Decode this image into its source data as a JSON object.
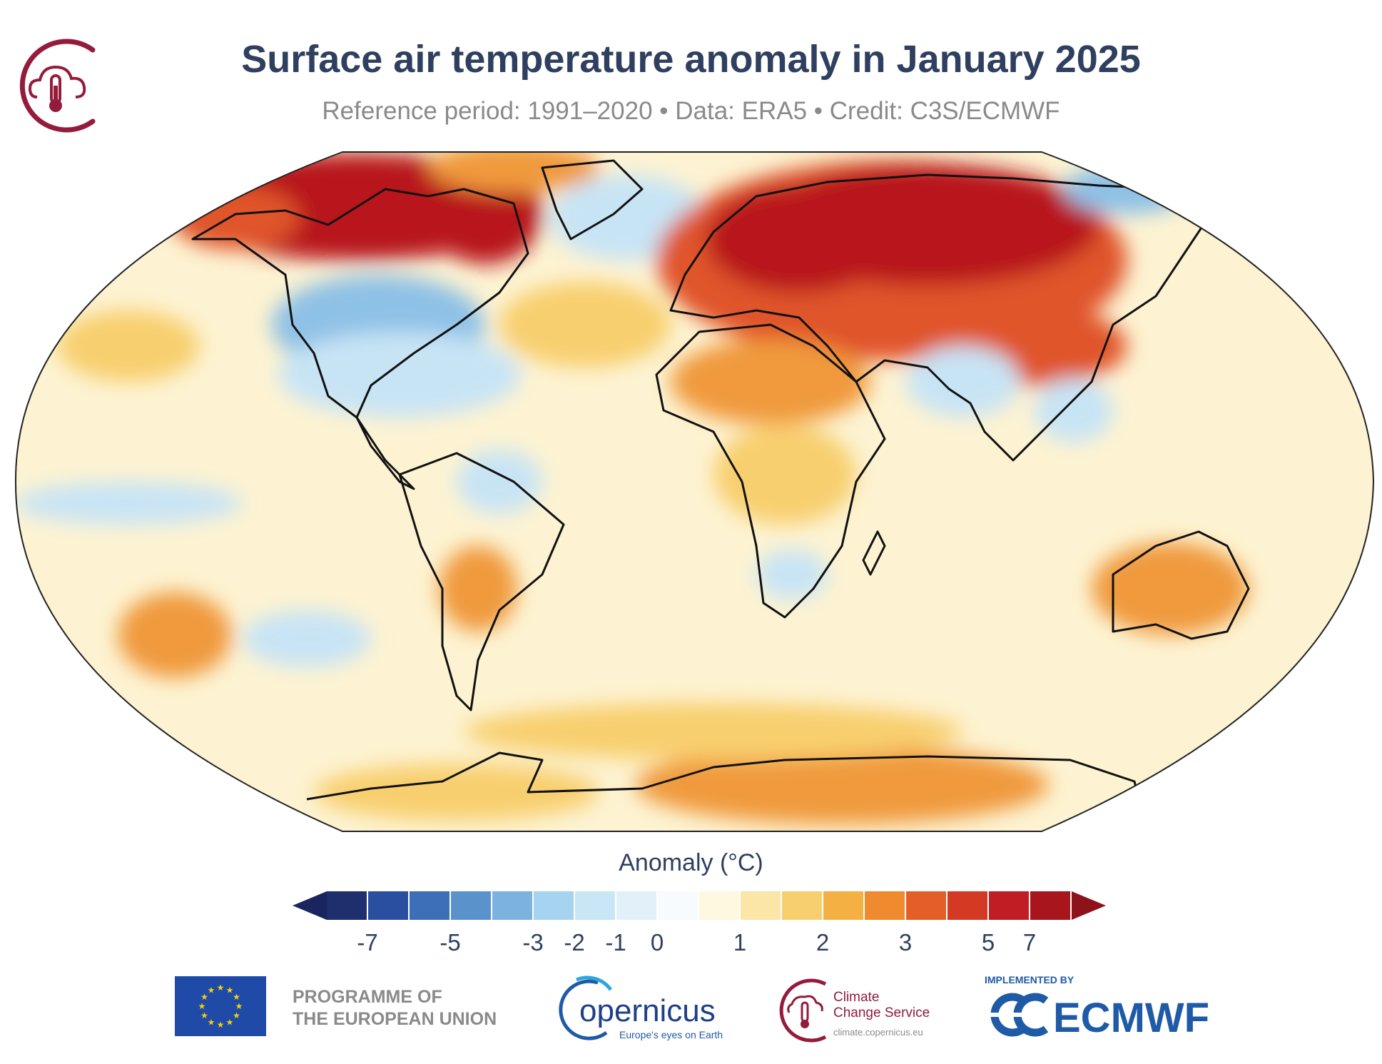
{
  "title": "Surface air temperature anomaly in January 2025",
  "subtitle": "Reference period: 1991–2020 • Data: ERA5 • Credit: C3S/ECMWF",
  "legend": {
    "title": "Anomaly (°C)",
    "ticks": [
      "-7",
      "-5",
      "-3",
      "-2",
      "-1",
      "0",
      "1",
      "2",
      "3",
      "5",
      "7"
    ],
    "colors": [
      "#1f2f6e",
      "#2a4fa0",
      "#3b6fb8",
      "#5a93cc",
      "#7bb2de",
      "#a5d3f0",
      "#c8e6f6",
      "#e2f1f9",
      "#f7fbfd",
      "#fef8e0",
      "#fbe6a8",
      "#f8cf6e",
      "#f5b043",
      "#ef8a2f",
      "#e45f27",
      "#d43a23",
      "#c01e24",
      "#a8151d"
    ],
    "low_arrow_color": "#1a2560",
    "high_arrow_color": "#8e1219"
  },
  "map_colors": {
    "ocean_base": "#fdf3d2",
    "cool": "#c7e4f5",
    "cold": "#8ec1e6",
    "very_cold": "#5a93cc",
    "warm": "#f8cf6e",
    "warmer": "#f09a3c",
    "hot": "#e0542a",
    "very_hot": "#b8171f",
    "coast": "#111111"
  },
  "footer": {
    "eu_text_line1": "PROGRAMME OF",
    "eu_text_line2": "THE EUROPEAN UNION",
    "copernicus_name": "opernicus",
    "copernicus_tagline": "Europe's eyes on Earth",
    "c3s_line1": "Climate",
    "c3s_line2": "Change Service",
    "c3s_url": "climate.copernicus.eu",
    "ecmwf_implemented": "IMPLEMENTED BY",
    "ecmwf_name": "ECMWF",
    "eu_color": "#1f4aa8",
    "eu_star_color": "#f5d10a",
    "c3s_color": "#941b3c",
    "ecmwf_color": "#1f5aa6"
  }
}
